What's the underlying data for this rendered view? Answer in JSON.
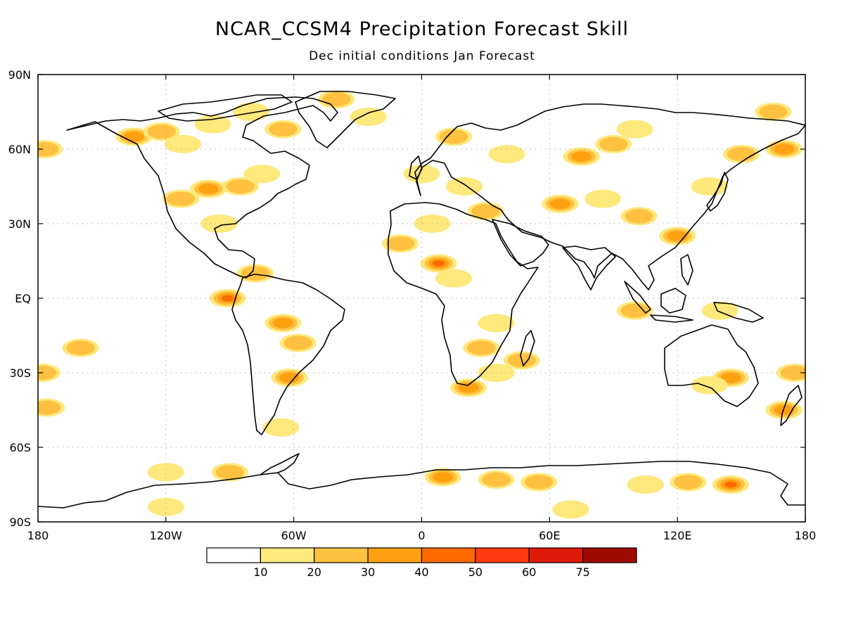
{
  "title": "NCAR_CCSM4 Precipitation Forecast Skill",
  "subtitle": "Dec initial conditions   Jan Forecast",
  "lat_ticks": [
    {
      "label": "90N",
      "lat": 90
    },
    {
      "label": "60N",
      "lat": 60
    },
    {
      "label": "30N",
      "lat": 30
    },
    {
      "label": "EQ",
      "lat": 0
    },
    {
      "label": "30S",
      "lat": -30
    },
    {
      "label": "60S",
      "lat": -60
    },
    {
      "label": "90S",
      "lat": -90
    }
  ],
  "lon_ticks": [
    {
      "label": "180",
      "lon": -180
    },
    {
      "label": "120W",
      "lon": -120
    },
    {
      "label": "60W",
      "lon": -60
    },
    {
      "label": "0",
      "lon": 0
    },
    {
      "label": "60E",
      "lon": 60
    },
    {
      "label": "120E",
      "lon": 120
    },
    {
      "label": "180",
      "lon": 180
    }
  ],
  "colorbar": {
    "colors": [
      "#ffffff",
      "#ffe87c",
      "#ffc13f",
      "#ffa010",
      "#ff6a00",
      "#ff3a10",
      "#e01a0a",
      "#a00a00"
    ],
    "labels": [
      "10",
      "20",
      "30",
      "40",
      "50",
      "60",
      "75"
    ]
  },
  "colors": {
    "coastline": "#000000",
    "grid": "#9a9a9a",
    "frame": "#000000"
  },
  "skill_patches": [
    {
      "lon": -135,
      "lat": 65,
      "level": 3
    },
    {
      "lon": -122,
      "lat": 67,
      "level": 2
    },
    {
      "lon": -112,
      "lat": 62,
      "level": 1
    },
    {
      "lon": -98,
      "lat": 70,
      "level": 1
    },
    {
      "lon": -80,
      "lat": 75,
      "level": 1
    },
    {
      "lon": -65,
      "lat": 68,
      "level": 2
    },
    {
      "lon": -40,
      "lat": 80,
      "level": 2
    },
    {
      "lon": -25,
      "lat": 73,
      "level": 1
    },
    {
      "lon": -100,
      "lat": 44,
      "level": 3
    },
    {
      "lon": -85,
      "lat": 45,
      "level": 2
    },
    {
      "lon": -75,
      "lat": 50,
      "level": 1
    },
    {
      "lon": -113,
      "lat": 40,
      "level": 2
    },
    {
      "lon": -95,
      "lat": 30,
      "level": 1
    },
    {
      "lon": -78,
      "lat": 10,
      "level": 2
    },
    {
      "lon": -91,
      "lat": 0,
      "level": 4
    },
    {
      "lon": -65,
      "lat": -10,
      "level": 3
    },
    {
      "lon": -58,
      "lat": -18,
      "level": 2
    },
    {
      "lon": -62,
      "lat": -32,
      "level": 3
    },
    {
      "lon": -66,
      "lat": -52,
      "level": 1
    },
    {
      "lon": -160,
      "lat": -20,
      "level": 2
    },
    {
      "lon": -178,
      "lat": -30,
      "level": 2
    },
    {
      "lon": -176,
      "lat": -44,
      "level": 2
    },
    {
      "lon": -177,
      "lat": 60,
      "level": 2
    },
    {
      "lon": -10,
      "lat": 22,
      "level": 2
    },
    {
      "lon": 5,
      "lat": 30,
      "level": 1
    },
    {
      "lon": 8,
      "lat": 14,
      "level": 4
    },
    {
      "lon": 15,
      "lat": 8,
      "level": 1
    },
    {
      "lon": 30,
      "lat": 35,
      "level": 2
    },
    {
      "lon": 20,
      "lat": 45,
      "level": 1
    },
    {
      "lon": 0,
      "lat": 50,
      "level": 1
    },
    {
      "lon": 15,
      "lat": 65,
      "level": 2
    },
    {
      "lon": 40,
      "lat": 58,
      "level": 1
    },
    {
      "lon": 75,
      "lat": 57,
      "level": 3
    },
    {
      "lon": 90,
      "lat": 62,
      "level": 2
    },
    {
      "lon": 100,
      "lat": 68,
      "level": 1
    },
    {
      "lon": 65,
      "lat": 38,
      "level": 3
    },
    {
      "lon": 85,
      "lat": 40,
      "level": 1
    },
    {
      "lon": 102,
      "lat": 33,
      "level": 2
    },
    {
      "lon": 120,
      "lat": 25,
      "level": 3
    },
    {
      "lon": 150,
      "lat": 58,
      "level": 2
    },
    {
      "lon": 170,
      "lat": 60,
      "level": 3
    },
    {
      "lon": 135,
      "lat": 45,
      "level": 1
    },
    {
      "lon": 165,
      "lat": 75,
      "level": 2
    },
    {
      "lon": 35,
      "lat": -10,
      "level": 1
    },
    {
      "lon": 28,
      "lat": -20,
      "level": 2
    },
    {
      "lon": 35,
      "lat": -30,
      "level": 1
    },
    {
      "lon": 22,
      "lat": -36,
      "level": 3
    },
    {
      "lon": 47,
      "lat": -25,
      "level": 2
    },
    {
      "lon": 145,
      "lat": -32,
      "level": 3
    },
    {
      "lon": 135,
      "lat": -35,
      "level": 1
    },
    {
      "lon": 170,
      "lat": -45,
      "level": 3
    },
    {
      "lon": 100,
      "lat": -5,
      "level": 2
    },
    {
      "lon": 140,
      "lat": -5,
      "level": 1
    },
    {
      "lon": 145,
      "lat": -75,
      "level": 4
    },
    {
      "lon": 125,
      "lat": -74,
      "level": 2
    },
    {
      "lon": 105,
      "lat": -75,
      "level": 1
    },
    {
      "lon": 10,
      "lat": -72,
      "level": 3
    },
    {
      "lon": 35,
      "lat": -73,
      "level": 2
    },
    {
      "lon": 55,
      "lat": -74,
      "level": 2
    },
    {
      "lon": -120,
      "lat": -70,
      "level": 1
    },
    {
      "lon": -90,
      "lat": -70,
      "level": 2
    },
    {
      "lon": -120,
      "lat": -84,
      "level": 1
    },
    {
      "lon": 70,
      "lat": -85,
      "level": 1
    },
    {
      "lon": 175,
      "lat": -30,
      "level": 2
    }
  ]
}
